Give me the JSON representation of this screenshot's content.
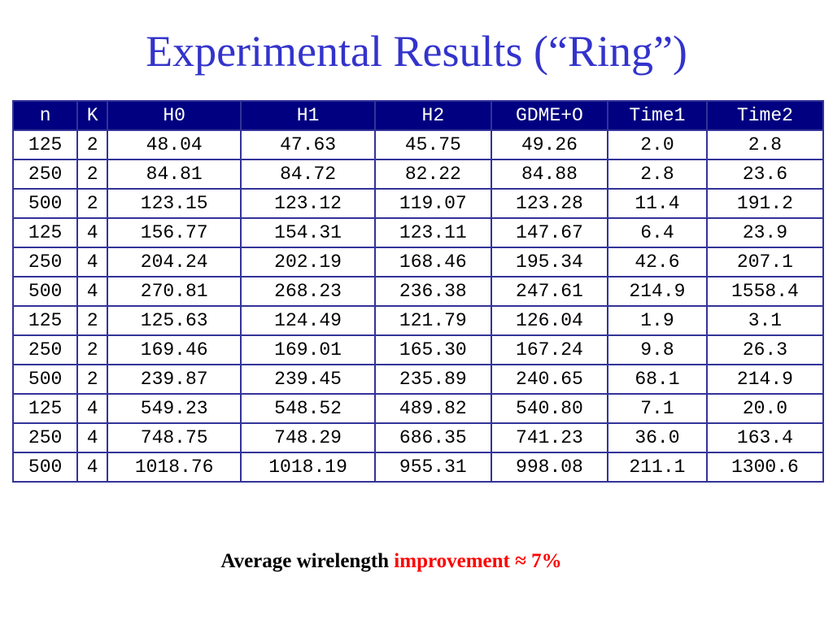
{
  "title": "Experimental Results (“Ring”)",
  "table": {
    "headers": [
      "n",
      "K",
      "H0",
      "H1",
      "H2",
      "GDME+O",
      "Time1",
      "Time2"
    ],
    "rows": [
      [
        "125",
        "2",
        "48.04",
        "47.63",
        "45.75",
        "49.26",
        "2.0",
        "2.8"
      ],
      [
        "250",
        "2",
        "84.81",
        "84.72",
        "82.22",
        "84.88",
        "2.8",
        "23.6"
      ],
      [
        "500",
        "2",
        "123.15",
        "123.12",
        "119.07",
        "123.28",
        "11.4",
        "191.2"
      ],
      [
        "125",
        "4",
        "156.77",
        "154.31",
        "123.11",
        "147.67",
        "6.4",
        "23.9"
      ],
      [
        "250",
        "4",
        "204.24",
        "202.19",
        "168.46",
        "195.34",
        "42.6",
        "207.1"
      ],
      [
        "500",
        "4",
        "270.81",
        "268.23",
        "236.38",
        "247.61",
        "214.9",
        "1558.4"
      ],
      [
        "125",
        "2",
        "125.63",
        "124.49",
        "121.79",
        "126.04",
        "1.9",
        "3.1"
      ],
      [
        "250",
        "2",
        "169.46",
        "169.01",
        "165.30",
        "167.24",
        "9.8",
        "26.3"
      ],
      [
        "500",
        "2",
        "239.87",
        "239.45",
        "235.89",
        "240.65",
        "68.1",
        "214.9"
      ],
      [
        "125",
        "4",
        "549.23",
        "548.52",
        "489.82",
        "540.80",
        "7.1",
        "20.0"
      ],
      [
        "250",
        "4",
        "748.75",
        "748.29",
        "686.35",
        "741.23",
        "36.0",
        "163.4"
      ],
      [
        "500",
        "4",
        "1018.76",
        "1018.19",
        "955.31",
        "998.08",
        "211.1",
        "1300.6"
      ]
    ]
  },
  "footer": {
    "prefix": "Average wirelength ",
    "highlight": "improvement",
    "approx": " ≈ 7%"
  },
  "colors": {
    "title": "#3333cc",
    "header_bg": "#000080",
    "h2": "#ff0000",
    "gdme": "#0000cc"
  }
}
